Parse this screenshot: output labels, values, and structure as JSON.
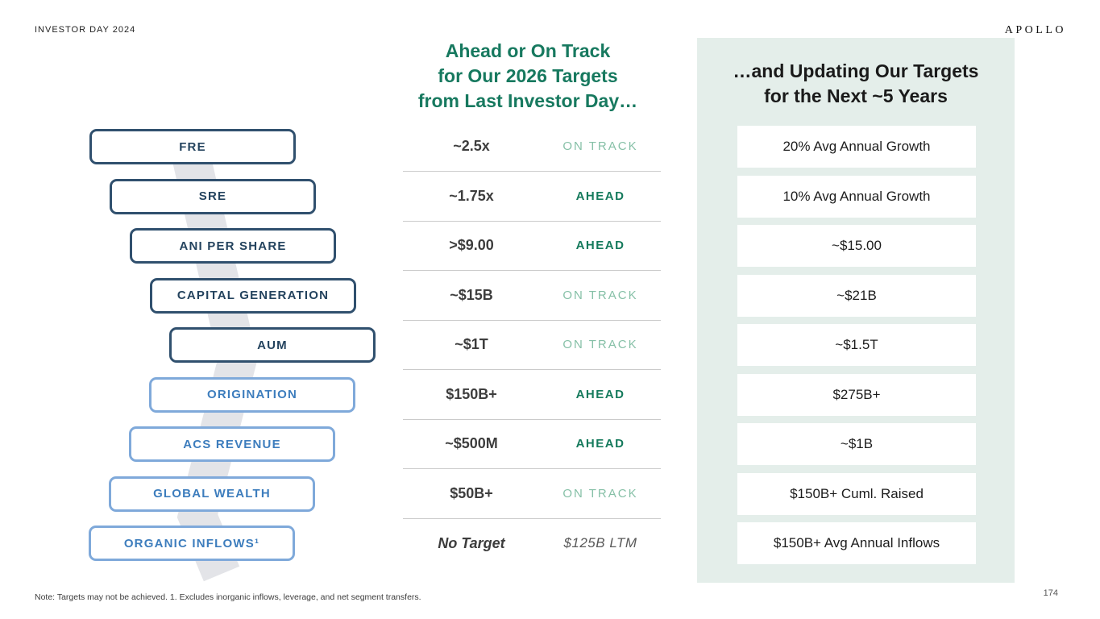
{
  "header": {
    "eyebrow": "INVESTOR DAY 2024",
    "logo": "APOLLO"
  },
  "middle": {
    "title_lines": [
      "Ahead or On Track",
      "for Our 2026 Targets",
      "from Last Investor Day…"
    ]
  },
  "right": {
    "title_lines": [
      "…and Updating Our Targets",
      "for the Next ~5 Years"
    ]
  },
  "metrics": [
    {
      "label": "FRE",
      "tier": "dark",
      "value": "~2.5x",
      "value_style": "normal",
      "status": "ON TRACK",
      "status_type": "on-track",
      "updated": "20% Avg Annual Growth"
    },
    {
      "label": "SRE",
      "tier": "dark",
      "value": "~1.75x",
      "value_style": "normal",
      "status": "AHEAD",
      "status_type": "ahead",
      "updated": "10% Avg Annual Growth"
    },
    {
      "label": "ANI PER SHARE",
      "tier": "dark",
      "value": ">$9.00",
      "value_style": "normal",
      "status": "AHEAD",
      "status_type": "ahead",
      "updated": "~$15.00"
    },
    {
      "label": "CAPITAL GENERATION",
      "tier": "dark",
      "value": "~$15B",
      "value_style": "normal",
      "status": "ON TRACK",
      "status_type": "on-track",
      "updated": "~$21B"
    },
    {
      "label": "AUM",
      "tier": "dark",
      "value": "~$1T",
      "value_style": "normal",
      "status": "ON TRACK",
      "status_type": "on-track",
      "updated": "~$1.5T"
    },
    {
      "label": "ORIGINATION",
      "tier": "light",
      "value": "$150B+",
      "value_style": "normal",
      "status": "AHEAD",
      "status_type": "ahead",
      "updated": "$275B+"
    },
    {
      "label": "ACS REVENUE",
      "tier": "light",
      "value": "~$500M",
      "value_style": "normal",
      "status": "AHEAD",
      "status_type": "ahead",
      "updated": "~$1B"
    },
    {
      "label": "GLOBAL WEALTH",
      "tier": "light",
      "value": "$50B+",
      "value_style": "normal",
      "status": "ON TRACK",
      "status_type": "on-track",
      "updated": "$150B+ Cuml. Raised"
    },
    {
      "label": "ORGANIC INFLOWS¹",
      "tier": "light",
      "value": "No Target",
      "value_style": "no-target",
      "status": "$125B LTM",
      "status_type": "ltm",
      "updated": "$150B+ Avg Annual Inflows"
    }
  ],
  "footer": {
    "note": "Note: Targets may not be achieved. 1. Excludes inorganic inflows, leverage, and net segment transfers.",
    "page_number": "174"
  },
  "colors": {
    "teal_header": "#17795f",
    "ahead_green": "#157a5c",
    "on_track_green": "#86c0a7",
    "dark_navy_border": "#30506e",
    "dark_navy_text": "#24435e",
    "light_blue_border": "#7fa9da",
    "light_blue_text": "#3d7dbd",
    "panel_background": "#e4eeea",
    "ribbon_gray": "#e3e4e8"
  }
}
